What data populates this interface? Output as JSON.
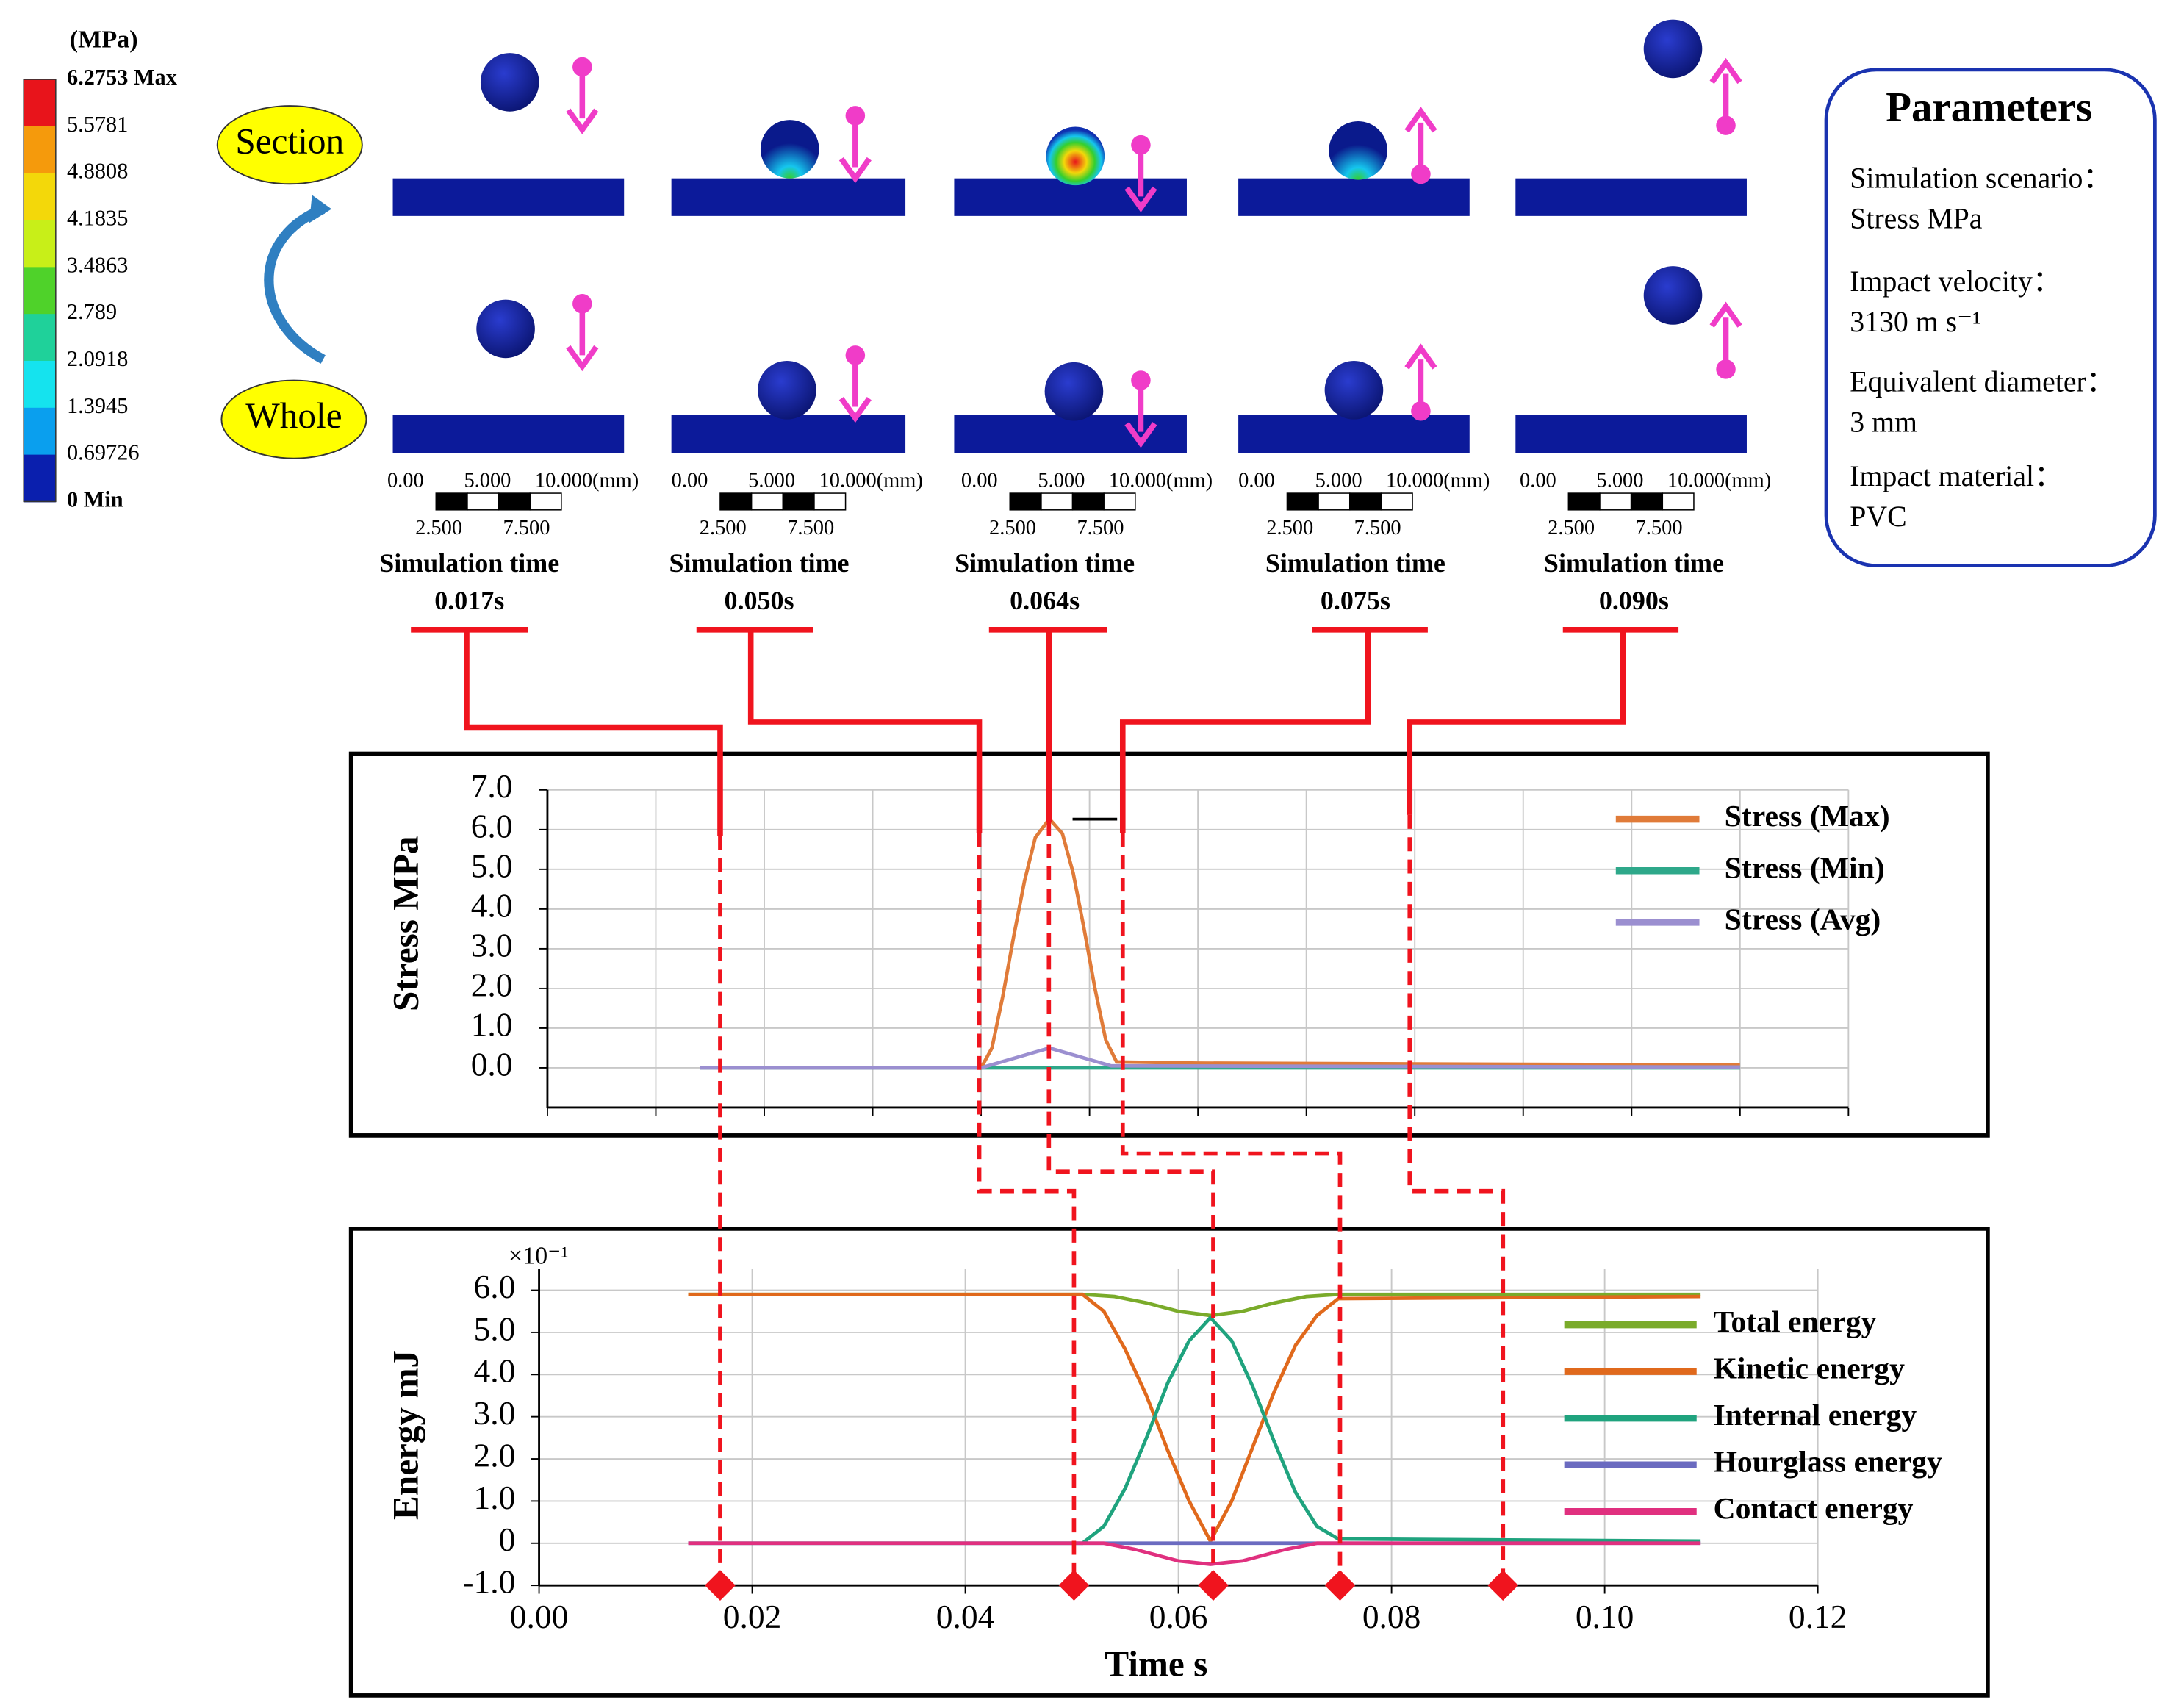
{
  "colorbar": {
    "unit": "(MPa)",
    "labels": [
      "6.2753 Max",
      "5.5781",
      "4.8808",
      "4.1835",
      "3.4863",
      "2.789",
      "2.0918",
      "1.3945",
      "0.69726",
      "0 Min"
    ],
    "colors": [
      "#e8141b",
      "#f59a0c",
      "#f3d80a",
      "#c8ef18",
      "#4fd22a",
      "#1fd19a",
      "#15e3ee",
      "#0a9fee",
      "#0a1fae"
    ]
  },
  "views": [
    "Section",
    "Whole"
  ],
  "snapshot_caption": "Simulation time",
  "snapshot_times": [
    "0.017s",
    "0.050s",
    "0.064s",
    "0.075s",
    "0.090s"
  ],
  "scale_bar": {
    "top": [
      "0.00",
      "5.000",
      "10.000(mm)"
    ],
    "bottom": [
      "2.500",
      "7.500"
    ]
  },
  "parameters": {
    "title": "Parameters",
    "items": [
      {
        "name": "Simulation scenario：",
        "value": "Stress MPa"
      },
      {
        "name": "Impact velocity：",
        "value": "3130 m s⁻¹"
      },
      {
        "name": "Equivalent diameter：",
        "value": "3 mm"
      },
      {
        "name": "Impact material：",
        "value": "PVC"
      }
    ]
  },
  "chart_data": [
    {
      "type": "line",
      "ylabel": "Stress  MPa",
      "xlim": [
        0,
        0.12
      ],
      "xticks": [
        0,
        0.01,
        0.02,
        0.03,
        0.04,
        0.05,
        0.06,
        0.07,
        0.08,
        0.09,
        0.1,
        0.11,
        0.12
      ],
      "ylim": [
        -1,
        7
      ],
      "yticks": [
        {
          "value": 0,
          "label": "0.0"
        },
        {
          "value": 1,
          "label": "1.0"
        },
        {
          "value": 2,
          "label": "2.0"
        },
        {
          "value": 3,
          "label": "3.0"
        },
        {
          "value": 4,
          "label": "4.0"
        },
        {
          "value": 5,
          "label": "5.0"
        },
        {
          "value": 6,
          "label": "6.0"
        },
        {
          "value": 7,
          "label": "7.0"
        }
      ],
      "grid": true,
      "legend": "upper right",
      "series": [
        {
          "name": "Stress (Max)",
          "color": "#e07b39",
          "x": [
            0.0141,
            0.04,
            0.041,
            0.042,
            0.043,
            0.044,
            0.045,
            0.0463,
            0.0475,
            0.0485,
            0.0495,
            0.0505,
            0.0515,
            0.0525,
            0.06,
            0.08,
            0.1,
            0.11
          ],
          "values": [
            0,
            0,
            0.5,
            1.8,
            3.3,
            4.7,
            5.8,
            6.27,
            5.9,
            4.9,
            3.5,
            2.0,
            0.7,
            0.15,
            0.12,
            0.1,
            0.08,
            0.08
          ]
        },
        {
          "name": "Stress (Min)",
          "color": "#2ea88a",
          "x": [
            0.0141,
            0.11
          ],
          "values": [
            0,
            0
          ]
        },
        {
          "name": "Stress (Avg)",
          "color": "#9b8fd0",
          "x": [
            0.0141,
            0.04,
            0.0463,
            0.052,
            0.11
          ],
          "values": [
            0,
            0,
            0.5,
            0.05,
            0.02
          ]
        }
      ]
    },
    {
      "type": "line",
      "ylabel": "Energy  mJ",
      "xlabel": "Time  s",
      "y_multiplier": "×10⁻¹",
      "xlim": [
        0,
        0.12
      ],
      "xticks": [
        {
          "value": 0,
          "label": "0.00"
        },
        0.02,
        0.04,
        0.06,
        0.08,
        {
          "value": 0.1,
          "label": "0.10"
        },
        0.12
      ],
      "ylim": [
        -1,
        6.5
      ],
      "yticks": [
        {
          "value": -1,
          "label": "-1.0"
        },
        0,
        {
          "value": 1,
          "label": "1.0"
        },
        {
          "value": 2,
          "label": "2.0"
        },
        {
          "value": 3,
          "label": "3.0"
        },
        {
          "value": 4,
          "label": "4.0"
        },
        {
          "value": 5,
          "label": "5.0"
        },
        {
          "value": 6,
          "label": "6.0"
        }
      ],
      "grid": true,
      "legend": "right",
      "series": [
        {
          "name": "Total energy",
          "color": "#7aab2a",
          "x": [
            0.014,
            0.051,
            0.054,
            0.057,
            0.06,
            0.063,
            0.066,
            0.069,
            0.072,
            0.075,
            0.109
          ],
          "values": [
            5.9,
            5.9,
            5.85,
            5.7,
            5.5,
            5.4,
            5.5,
            5.7,
            5.85,
            5.9,
            5.9
          ]
        },
        {
          "name": "Kinetic energy",
          "color": "#e0691c",
          "x": [
            0.014,
            0.051,
            0.053,
            0.055,
            0.057,
            0.059,
            0.061,
            0.063,
            0.065,
            0.067,
            0.069,
            0.071,
            0.073,
            0.075,
            0.109
          ],
          "values": [
            5.9,
            5.9,
            5.5,
            4.6,
            3.5,
            2.2,
            1.0,
            0.05,
            1.0,
            2.3,
            3.6,
            4.7,
            5.4,
            5.8,
            5.85
          ]
        },
        {
          "name": "Internal energy",
          "color": "#1fa37e",
          "x": [
            0.014,
            0.051,
            0.053,
            0.055,
            0.057,
            0.059,
            0.061,
            0.063,
            0.065,
            0.067,
            0.069,
            0.071,
            0.073,
            0.075,
            0.109
          ],
          "values": [
            0,
            0,
            0.4,
            1.3,
            2.5,
            3.8,
            4.8,
            5.35,
            4.8,
            3.7,
            2.4,
            1.2,
            0.4,
            0.1,
            0.05
          ]
        },
        {
          "name": "Hourglass energy",
          "color": "#6b6bc0",
          "x": [
            0.014,
            0.109
          ],
          "values": [
            0,
            0
          ]
        },
        {
          "name": "Contact energy",
          "color": "#e0307f",
          "x": [
            0.014,
            0.053,
            0.056,
            0.06,
            0.063,
            0.066,
            0.07,
            0.073,
            0.109
          ],
          "values": [
            0,
            0,
            -0.15,
            -0.42,
            -0.5,
            -0.42,
            -0.15,
            0,
            0
          ]
        }
      ]
    }
  ]
}
